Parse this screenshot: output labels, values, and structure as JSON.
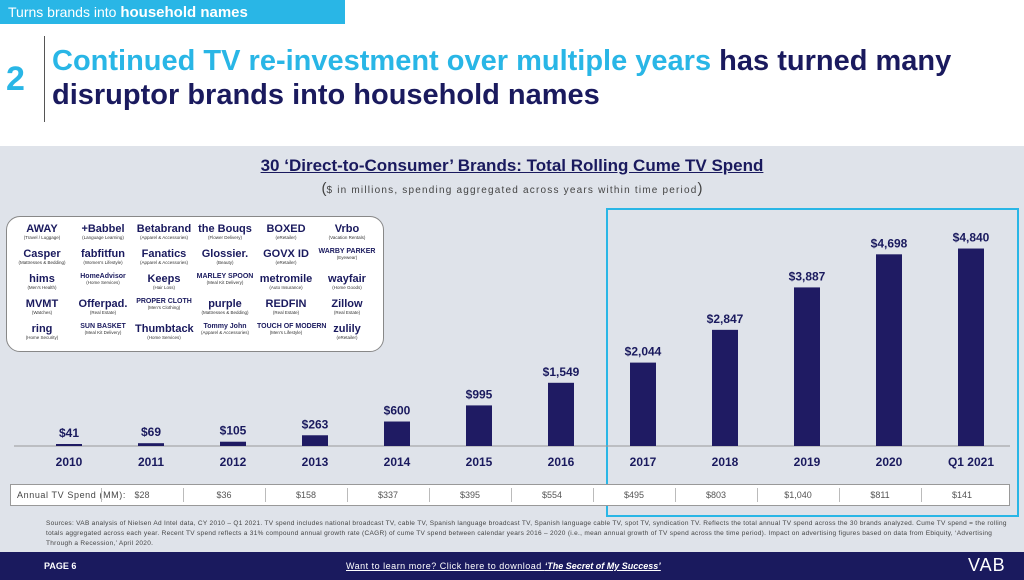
{
  "tagline": {
    "prefix": "Turns brands into ",
    "bold": "household names"
  },
  "header": {
    "number": "2",
    "title_highlight": "Continued TV re-investment over multiple years",
    "title_rest": " has turned many disruptor brands into household names"
  },
  "colors": {
    "accent": "#29b6e6",
    "navy": "#1a1a5e",
    "bar": "#1f1b63",
    "panel": "#dfe3ea"
  },
  "logos": [
    {
      "name": "AWAY",
      "cat": "(Travel / Luggage)"
    },
    {
      "name": "+Babbel",
      "cat": "(Language Learning)"
    },
    {
      "name": "Betabrand",
      "cat": "(Apparel & Accessories)"
    },
    {
      "name": "the Bouqs",
      "cat": "(Flower Delivery)"
    },
    {
      "name": "BOXED",
      "cat": "(eRetailer)"
    },
    {
      "name": "Vrbo",
      "cat": "(Vacation Rentals)"
    },
    {
      "name": "Casper",
      "cat": "(Mattresses & Bedding)"
    },
    {
      "name": "fabfitfun",
      "cat": "(Women's Lifestyle)"
    },
    {
      "name": "Fanatics",
      "cat": "(Apparel & Accessories)"
    },
    {
      "name": "Glossier.",
      "cat": "(Beauty)"
    },
    {
      "name": "GOVX ID",
      "cat": "(eRetailer)"
    },
    {
      "name": "WARBY PARKER",
      "cat": "(Eyewear)"
    },
    {
      "name": "hims",
      "cat": "(Men's Health)"
    },
    {
      "name": "HomeAdvisor",
      "cat": "(Home Services)"
    },
    {
      "name": "Keeps",
      "cat": "(Hair Loss)"
    },
    {
      "name": "MARLEY SPOON",
      "cat": "(Meal Kit Delivery)"
    },
    {
      "name": "metromile",
      "cat": "(Auto Insurance)"
    },
    {
      "name": "wayfair",
      "cat": "(Home Goods)"
    },
    {
      "name": "MVMT",
      "cat": "(Watches)"
    },
    {
      "name": "Offerpad.",
      "cat": "(Real Estate)"
    },
    {
      "name": "PROPER CLOTH",
      "cat": "(Men's Clothing)"
    },
    {
      "name": "purple",
      "cat": "(Mattresses & Bedding)"
    },
    {
      "name": "REDFIN",
      "cat": "(Real Estate)"
    },
    {
      "name": "Zillow",
      "cat": "(Real Estate)"
    },
    {
      "name": "ring",
      "cat": "(Home Security)"
    },
    {
      "name": "SUN BASKET",
      "cat": "(Meal Kit Delivery)"
    },
    {
      "name": "Thumbtack",
      "cat": "(Home Services)"
    },
    {
      "name": "Tommy John",
      "cat": "(Apparel & Accessories)"
    },
    {
      "name": "TOUCH OF MODERN",
      "cat": "(Men's Lifestyle)"
    },
    {
      "name": "zulily",
      "cat": "(eRetailer)"
    }
  ],
  "chart_data": {
    "type": "bar",
    "title": "30 ‘Direct-to-Consumer’ Brands: Total Rolling Cume TV Spend",
    "subtitle": "$ in millions, spending aggregated across years within time period",
    "categories": [
      "2010",
      "2011",
      "2012",
      "2013",
      "2014",
      "2015",
      "2016",
      "2017",
      "2018",
      "2019",
      "2020",
      "Q1 2021"
    ],
    "values": [
      41,
      69,
      105,
      263,
      600,
      995,
      1549,
      2044,
      2847,
      3887,
      4698,
      4840
    ],
    "value_labels": [
      "$41",
      "$69",
      "$105",
      "$263",
      "$600",
      "$995",
      "$1,549",
      "$2,044",
      "$2,847",
      "$3,887",
      "$4,698",
      "$4,840"
    ],
    "ylim": [
      0,
      5000
    ],
    "grid": false,
    "highlight_range": [
      "2017",
      "Q1 2021"
    ],
    "annual_label": "Annual TV Spend (MM):",
    "annual_spend": [
      "$28",
      "$36",
      "$158",
      "$337",
      "$395",
      "$554",
      "$495",
      "$803",
      "$1,040",
      "$811",
      "$141"
    ]
  },
  "sources": "Sources: VAB analysis of Nielsen Ad Intel data, CY 2010 – Q1 2021. TV spend includes national broadcast TV, cable TV, Spanish language broadcast TV, Spanish language cable TV, spot TV, syndication TV. Reflects the total annual TV spend across the 30 brands analyzed. Cume TV spend = the rolling totals aggregated across each year. Recent TV spend reflects a 31% compound annual growth rate (CAGR) of cume TV spend between calendar years 2016 – 2020 (i.e., mean annual growth of TV spend across the time period). Impact on advertising figures based on data from Ebiquity, ‘Advertising Through a Recession,’ April 2020.",
  "footer": {
    "page": "PAGE 6",
    "cta_prefix": "Want to learn more? Click here to download ",
    "cta_title": "‘The Secret of My Success’",
    "logo": "VAB"
  }
}
